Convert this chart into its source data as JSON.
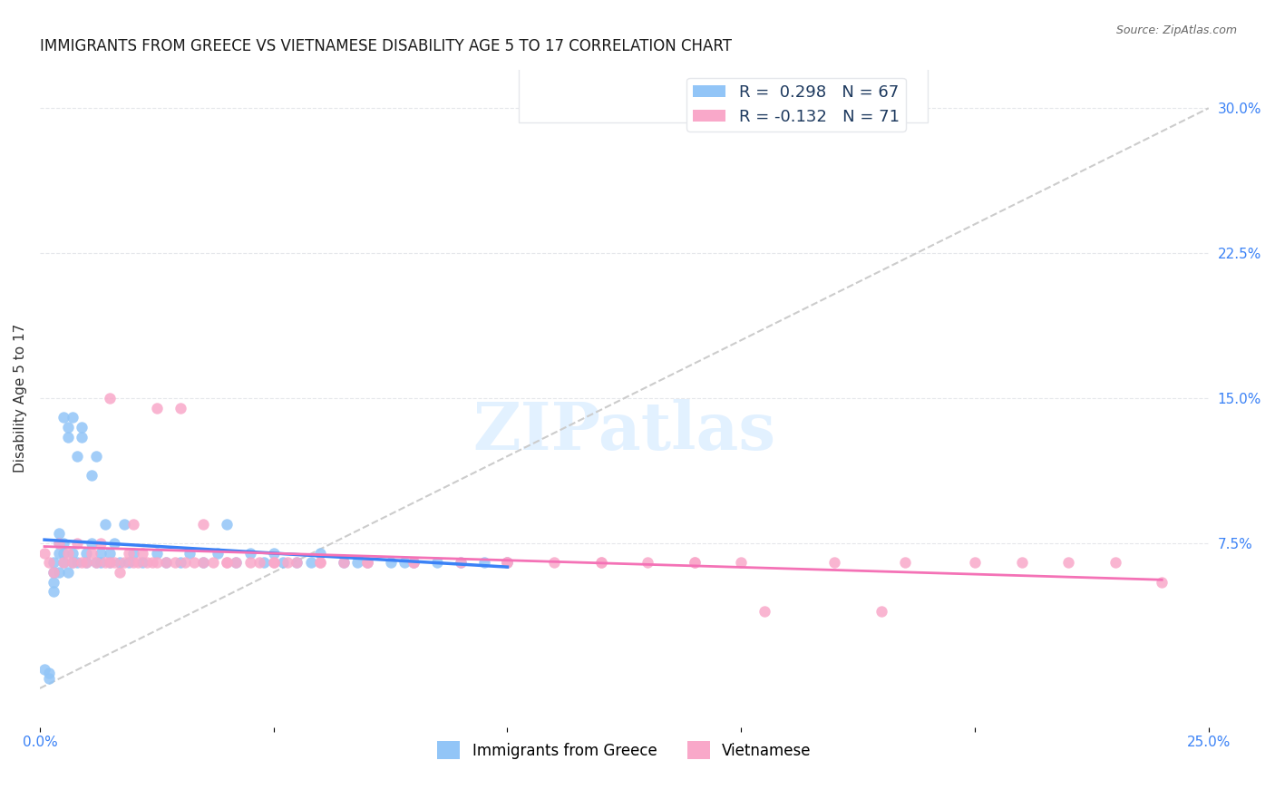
{
  "title": "IMMIGRANTS FROM GREECE VS VIETNAMESE DISABILITY AGE 5 TO 17 CORRELATION CHART",
  "source": "Source: ZipAtlas.com",
  "xlabel_bottom": "",
  "ylabel": "Disability Age 5 to 17",
  "xlim": [
    0.0,
    0.25
  ],
  "ylim": [
    -0.02,
    0.32
  ],
  "xticks": [
    0.0,
    0.05,
    0.1,
    0.15,
    0.2,
    0.25
  ],
  "xticklabels": [
    "0.0%",
    "",
    "",
    "",
    "",
    "25.0%"
  ],
  "yticks_right": [
    0.075,
    0.15,
    0.225,
    0.3
  ],
  "yticklabels_right": [
    "7.5%",
    "15.0%",
    "22.5%",
    "30.0%"
  ],
  "greece_R": 0.298,
  "greece_N": 67,
  "vietnamese_R": -0.132,
  "vietnamese_N": 71,
  "greece_color": "#92C5F7",
  "vietnamese_color": "#F9A8C9",
  "greece_line_color": "#3B82F6",
  "vietnamese_line_color": "#F472B6",
  "diagonal_color": "#CCCCCC",
  "watermark": "ZIPatlas",
  "background_color": "#FFFFFF",
  "greece_x": [
    0.001,
    0.002,
    0.002,
    0.003,
    0.003,
    0.003,
    0.003,
    0.004,
    0.004,
    0.004,
    0.004,
    0.005,
    0.005,
    0.005,
    0.005,
    0.006,
    0.006,
    0.006,
    0.007,
    0.007,
    0.007,
    0.008,
    0.008,
    0.009,
    0.009,
    0.01,
    0.01,
    0.011,
    0.011,
    0.012,
    0.012,
    0.013,
    0.013,
    0.014,
    0.015,
    0.015,
    0.016,
    0.017,
    0.018,
    0.019,
    0.02,
    0.022,
    0.025,
    0.027,
    0.03,
    0.032,
    0.035,
    0.038,
    0.04,
    0.042,
    0.045,
    0.048,
    0.05,
    0.052,
    0.055,
    0.058,
    0.06,
    0.065,
    0.068,
    0.07,
    0.075,
    0.078,
    0.08,
    0.085,
    0.09,
    0.095,
    0.1
  ],
  "greece_y": [
    0.01,
    0.005,
    0.008,
    0.06,
    0.05,
    0.055,
    0.065,
    0.07,
    0.06,
    0.075,
    0.08,
    0.065,
    0.07,
    0.075,
    0.14,
    0.13,
    0.135,
    0.06,
    0.065,
    0.07,
    0.14,
    0.065,
    0.12,
    0.135,
    0.13,
    0.065,
    0.07,
    0.075,
    0.11,
    0.065,
    0.12,
    0.07,
    0.065,
    0.085,
    0.065,
    0.07,
    0.075,
    0.065,
    0.085,
    0.065,
    0.07,
    0.065,
    0.07,
    0.065,
    0.065,
    0.07,
    0.065,
    0.07,
    0.085,
    0.065,
    0.07,
    0.065,
    0.07,
    0.065,
    0.065,
    0.065,
    0.07,
    0.065,
    0.065,
    0.065,
    0.065,
    0.065,
    0.065,
    0.065,
    0.065,
    0.065,
    0.065
  ],
  "vietnam_x": [
    0.001,
    0.002,
    0.003,
    0.004,
    0.005,
    0.006,
    0.007,
    0.008,
    0.009,
    0.01,
    0.011,
    0.012,
    0.013,
    0.014,
    0.015,
    0.016,
    0.017,
    0.018,
    0.019,
    0.02,
    0.021,
    0.022,
    0.023,
    0.024,
    0.025,
    0.027,
    0.029,
    0.031,
    0.033,
    0.035,
    0.037,
    0.04,
    0.042,
    0.045,
    0.047,
    0.05,
    0.053,
    0.055,
    0.06,
    0.065,
    0.07,
    0.08,
    0.09,
    0.1,
    0.11,
    0.12,
    0.13,
    0.14,
    0.15,
    0.17,
    0.185,
    0.2,
    0.21,
    0.22,
    0.23,
    0.24,
    0.015,
    0.02,
    0.025,
    0.03,
    0.035,
    0.04,
    0.05,
    0.06,
    0.07,
    0.08,
    0.1,
    0.12,
    0.14,
    0.155,
    0.18
  ],
  "vietnam_y": [
    0.07,
    0.065,
    0.06,
    0.075,
    0.065,
    0.07,
    0.065,
    0.075,
    0.065,
    0.065,
    0.07,
    0.065,
    0.075,
    0.065,
    0.065,
    0.065,
    0.06,
    0.065,
    0.07,
    0.065,
    0.065,
    0.07,
    0.065,
    0.065,
    0.065,
    0.065,
    0.065,
    0.065,
    0.065,
    0.065,
    0.065,
    0.065,
    0.065,
    0.065,
    0.065,
    0.065,
    0.065,
    0.065,
    0.065,
    0.065,
    0.065,
    0.065,
    0.065,
    0.065,
    0.065,
    0.065,
    0.065,
    0.065,
    0.065,
    0.065,
    0.065,
    0.065,
    0.065,
    0.065,
    0.065,
    0.055,
    0.15,
    0.085,
    0.145,
    0.145,
    0.085,
    0.065,
    0.065,
    0.065,
    0.065,
    0.065,
    0.065,
    0.065,
    0.065,
    0.04,
    0.04
  ],
  "legend_greece_R": "R =  0.298",
  "legend_greece_N": "N = 67",
  "legend_viet_R": "R = -0.132",
  "legend_viet_N": "N = 71"
}
